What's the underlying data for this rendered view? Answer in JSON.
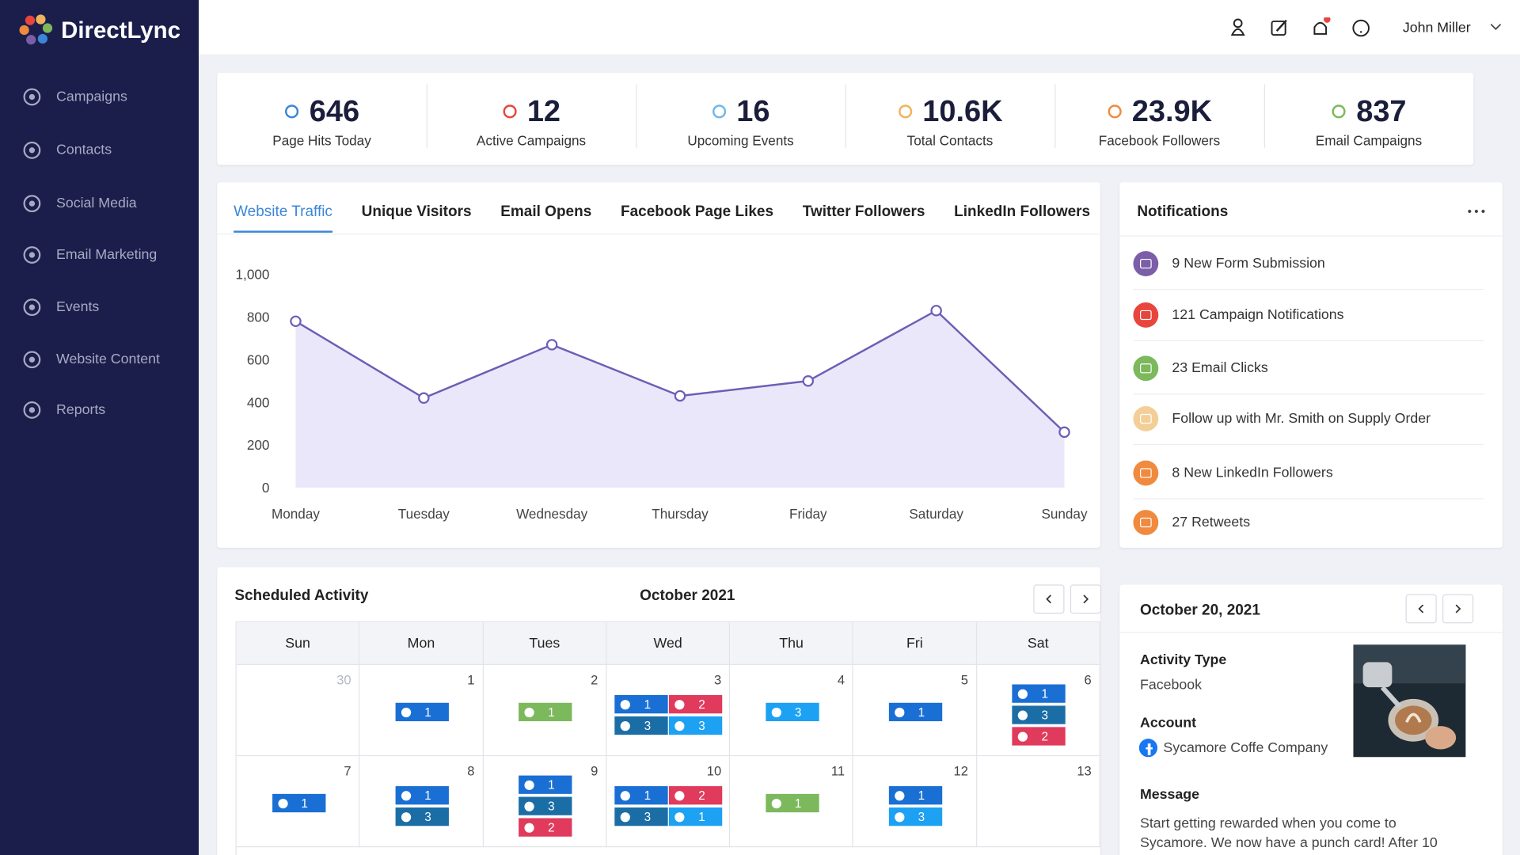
{
  "brand": "DirectLync",
  "sidebar": [
    "Campaigns",
    "Contacts",
    "Social Media",
    "Email Marketing",
    "Events",
    "Website Content",
    "Reports"
  ],
  "header": {
    "user": "John Miller"
  },
  "stats": [
    {
      "value": 646,
      "label": "Page Hits Today",
      "color": "#3b86d8"
    },
    {
      "value": 12,
      "label": "Active Campaigns",
      "color": "#e8453c"
    },
    {
      "value": 16,
      "label": "Upcoming Events",
      "color": "#6fb7e8"
    },
    {
      "value": "10.6K",
      "label": "Total Contacts",
      "color": "#f0b35a"
    },
    {
      "value": "23.9K",
      "label": "Facebook Followers",
      "color": "#f08a3e"
    },
    {
      "value": 837,
      "label": "Email Campaigns",
      "color": "#7cb85c"
    }
  ],
  "tabs": [
    "Website Traffic",
    "Unique Visitors",
    "Email Opens",
    "Facebook Page Likes",
    "Twitter Followers",
    "LinkedIn Followers"
  ],
  "chart_data": {
    "type": "line",
    "categories": [
      "Monday",
      "Tuesday",
      "Wednesday",
      "Thursday",
      "Friday",
      "Saturday",
      "Sunday"
    ],
    "values": [
      780,
      420,
      670,
      430,
      500,
      830,
      260
    ],
    "color": "#6b5fb5",
    "fill": "#ebe7fb",
    "ylim": [
      0,
      1000
    ],
    "yticks": [
      0,
      200,
      400,
      600,
      800,
      {
        "value": 1000,
        "label": "1,000"
      }
    ],
    "grid": false
  },
  "notifications": {
    "title": "Notifications",
    "items": [
      {
        "text": "9 New Form Submission",
        "color": "#7b5ea7"
      },
      {
        "text": "121 Campaign Notifications",
        "color": "#e8453c"
      },
      {
        "text": "23 Email Clicks",
        "color": "#7cb85c"
      },
      {
        "text": "Follow up with Mr. Smith on Supply Order",
        "color": "#f3cf98"
      },
      {
        "text": "8 New LinkedIn Followers",
        "color": "#f08a3e"
      },
      {
        "text": "27 Retweets",
        "color": "#f08a3e"
      }
    ]
  },
  "calendar": {
    "title": "Scheduled Activity",
    "month": "October 2021",
    "weekdays": [
      "Sun",
      "Mon",
      "Tues",
      "Wed",
      "Thu",
      "Fri",
      "Sat"
    ],
    "weeks": [
      [
        {
          "day": 30,
          "muted": true,
          "items": []
        },
        {
          "day": 1,
          "items": [
            {
              "type": "facebook",
              "count": 1
            }
          ]
        },
        {
          "day": 2,
          "items": [
            {
              "type": "email",
              "count": 1
            }
          ]
        },
        {
          "day": 3,
          "items": [
            {
              "type": "facebook",
              "count": 1
            },
            {
              "type": "instagram",
              "count": 2
            },
            {
              "type": "linkedin",
              "count": 3
            },
            {
              "type": "twitter",
              "count": 3
            }
          ]
        },
        {
          "day": 4,
          "items": [
            {
              "type": "twitter",
              "count": 3
            }
          ]
        },
        {
          "day": 5,
          "items": [
            {
              "type": "facebook",
              "count": 1
            }
          ]
        },
        {
          "day": 6,
          "items": [
            {
              "type": "facebook",
              "count": 1
            },
            {
              "type": "linkedin",
              "count": 3
            },
            {
              "type": "instagram",
              "count": 2
            }
          ]
        }
      ],
      [
        {
          "day": 7,
          "items": [
            {
              "type": "facebook",
              "count": 1
            }
          ]
        },
        {
          "day": 8,
          "items": [
            {
              "type": "facebook",
              "count": 1
            },
            {
              "type": "linkedin",
              "count": 3
            }
          ]
        },
        {
          "day": 9,
          "items": [
            {
              "type": "facebook",
              "count": 1
            },
            {
              "type": "linkedin",
              "count": 3
            },
            {
              "type": "instagram",
              "count": 2
            }
          ]
        },
        {
          "day": 10,
          "items": [
            {
              "type": "facebook",
              "count": 1
            },
            {
              "type": "instagram",
              "count": 2
            },
            {
              "type": "linkedin",
              "count": 3
            },
            {
              "type": "twitter",
              "count": 1
            }
          ]
        },
        {
          "day": 11,
          "items": [
            {
              "type": "email",
              "count": 1
            }
          ]
        },
        {
          "day": 12,
          "items": [
            {
              "type": "facebook",
              "count": 1
            },
            {
              "type": "twitter",
              "count": 3
            }
          ]
        },
        {
          "day": 13,
          "items": []
        }
      ]
    ]
  },
  "detail": {
    "date": "October 20, 2021",
    "activity_label": "Activity Type",
    "activity": "Facebook",
    "account_label": "Account",
    "account": "Sycamore Coffe Company",
    "message_label": "Message",
    "message": "Start getting rewarded when you come to Sycamore. We now have a punch card! After 10"
  }
}
